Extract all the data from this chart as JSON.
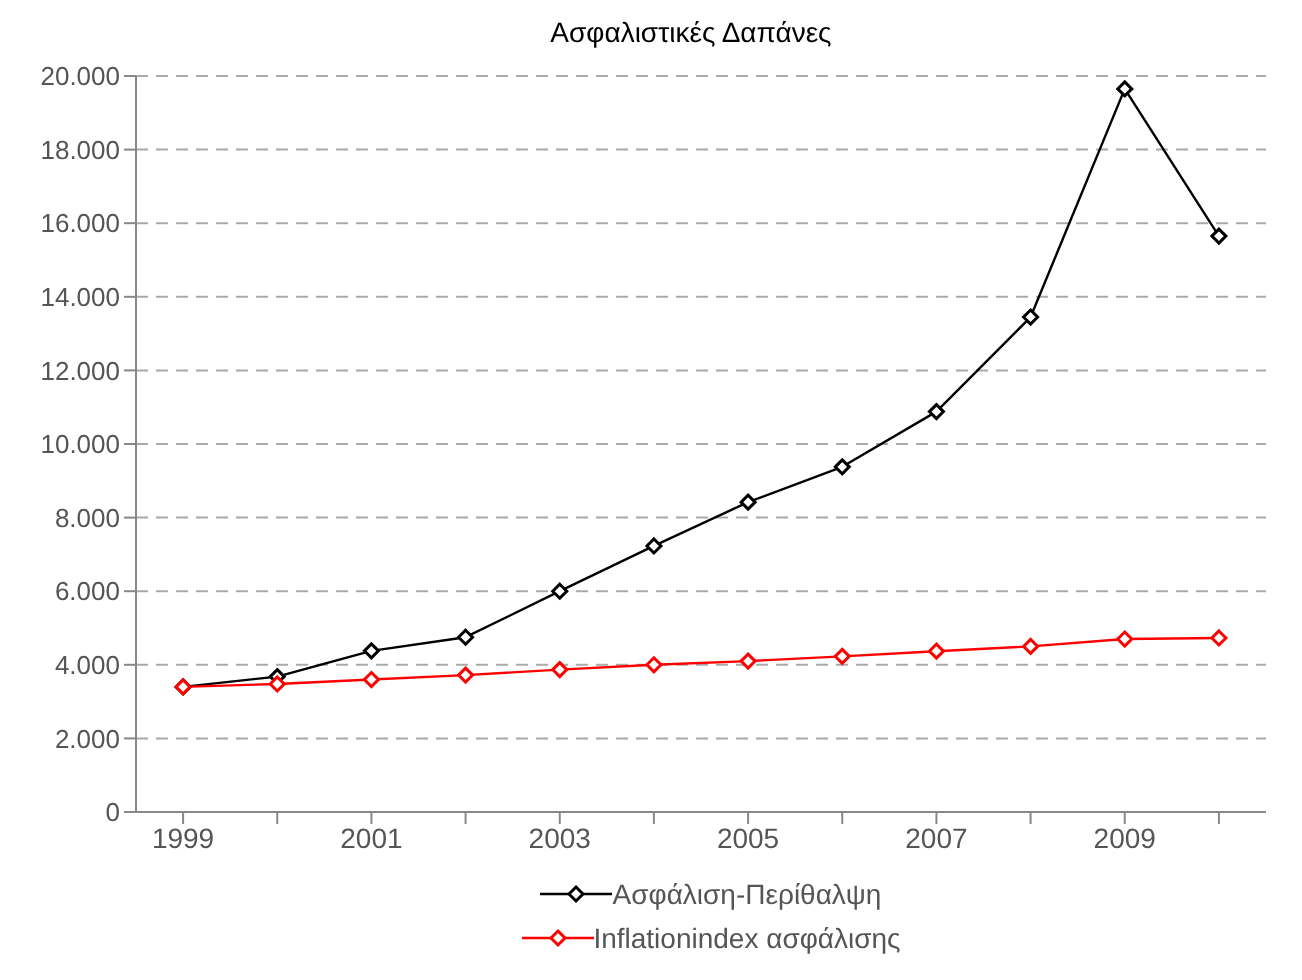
{
  "chart_data": {
    "type": "line",
    "title": "Ασφαλιστικές Δαπάνες",
    "categories": [
      "1999",
      null,
      "2001",
      null,
      "2003",
      null,
      "2005",
      null,
      "2007",
      null,
      "2009",
      null
    ],
    "series": [
      {
        "name": "Ασφάλιση-Περίθαλψη",
        "color": "#000000",
        "values": [
          3400,
          3680,
          4380,
          4750,
          6000,
          7230,
          8420,
          9380,
          10880,
          13450,
          19650,
          15650
        ]
      },
      {
        "name": "Inflationindex ασφάλισης",
        "color": "#ff0000",
        "values": [
          3400,
          3480,
          3600,
          3720,
          3870,
          4000,
          4100,
          4230,
          4370,
          4500,
          4700,
          4730
        ]
      }
    ],
    "ylim": [
      0,
      20000
    ],
    "yticks": [
      0,
      {
        "value": 2000,
        "label": "2.000"
      },
      {
        "value": 4000,
        "label": "4.000"
      },
      {
        "value": 6000,
        "label": "6.000"
      },
      {
        "value": 8000,
        "label": "8.000"
      },
      {
        "value": 10000,
        "label": "10.000"
      },
      {
        "value": 12000,
        "label": "12.000"
      },
      {
        "value": 14000,
        "label": "14.000"
      },
      {
        "value": 16000,
        "label": "16.000"
      },
      {
        "value": 18000,
        "label": "18.000"
      },
      {
        "value": 20000,
        "label": "20.000"
      }
    ],
    "grid": "y",
    "legend": "bottom",
    "marker": "diamond",
    "line_style": "solid"
  }
}
